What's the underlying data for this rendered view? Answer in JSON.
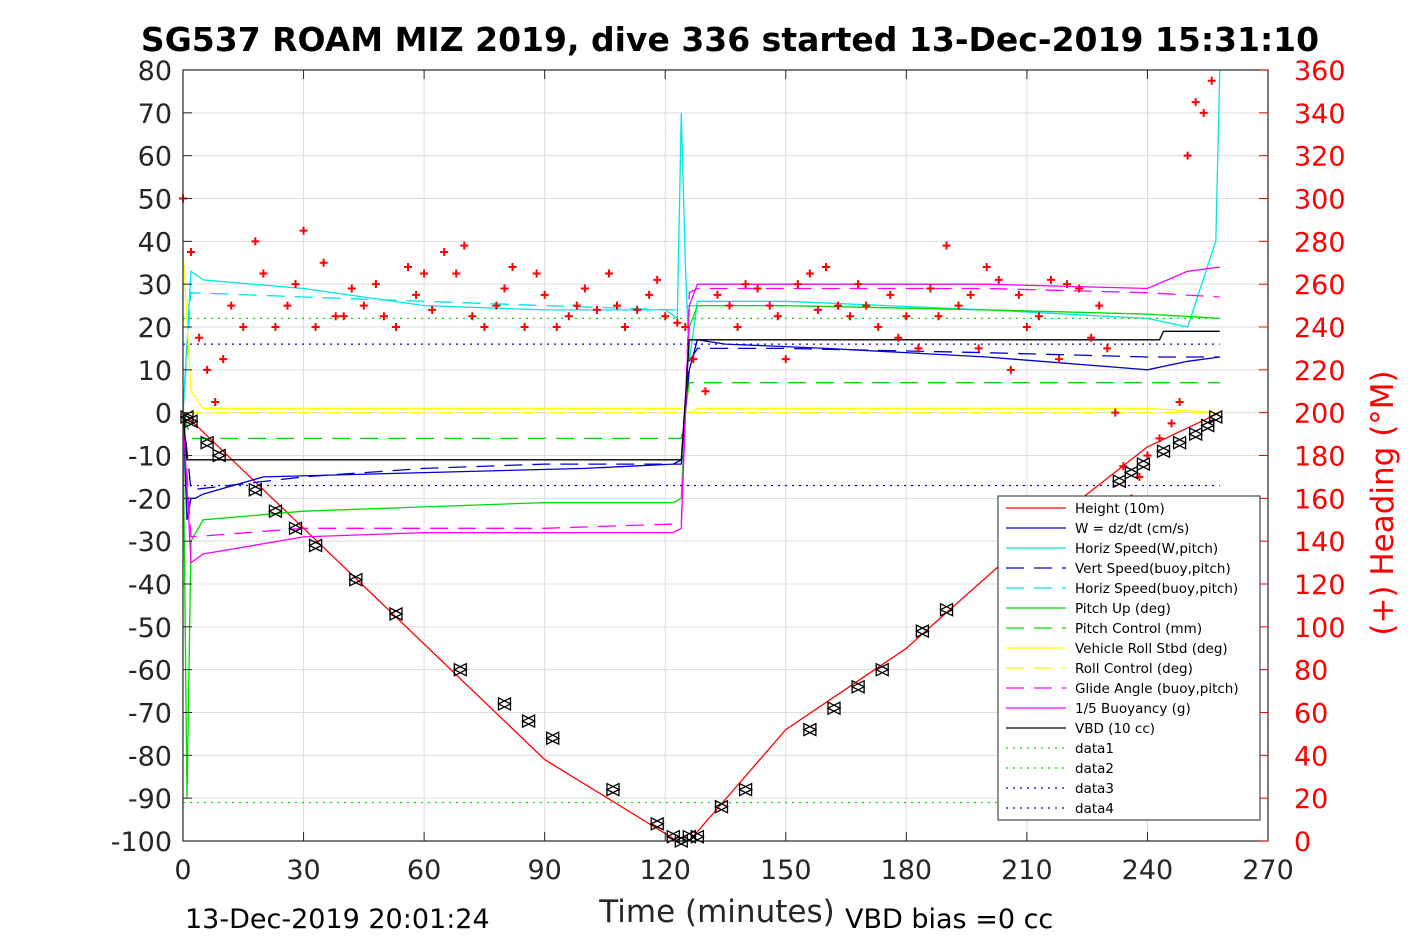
{
  "chart_data": {
    "type": "line",
    "title": "SG537 ROAM MIZ 2019, dive 336 started 13-Dec-2019 15:31:10",
    "xlabel": "Time (minutes)",
    "ylabel": "",
    "ylabel_right": "(+) Heading (°M)",
    "xlim": [
      0,
      270
    ],
    "ylim": [
      -100,
      80
    ],
    "ylim_right": [
      0,
      360
    ],
    "xticks": [
      "0",
      "30",
      "60",
      "90",
      "120",
      "150",
      "180",
      "210",
      "240",
      "270"
    ],
    "yticks": [
      "80",
      "70",
      "60",
      "50",
      "40",
      "30",
      "20",
      "10",
      "0",
      "-10",
      "-20",
      "-30",
      "-40",
      "-50",
      "-60",
      "-70",
      "-80",
      "-90",
      "-100"
    ],
    "yticks_right": [
      "360",
      "340",
      "320",
      "300",
      "280",
      "260",
      "240",
      "220",
      "200",
      "180",
      "160",
      "140",
      "120",
      "100",
      "80",
      "60",
      "40",
      "20",
      "0"
    ],
    "grid": true,
    "legend_position": "lower-right",
    "footer_left": "13-Dec-2019 20:01:24",
    "footer_right": "VBD bias =0 cc",
    "series": [
      {
        "name": "Height (10m)",
        "color": "#ff0000",
        "style": "solid",
        "x": [
          0,
          30,
          60,
          90,
          123,
          126,
          150,
          180,
          210,
          240,
          258
        ],
        "values": [
          0,
          -27,
          -54,
          -81,
          -100,
          -100,
          -74,
          -55,
          -30,
          -8,
          0
        ]
      },
      {
        "name": "W = dz/dt (cm/s)",
        "color": "#0000cc",
        "style": "solid",
        "x": [
          0,
          1,
          2,
          3,
          5,
          20,
          60,
          100,
          122,
          124,
          126,
          128,
          135,
          160,
          200,
          240,
          250,
          258
        ],
        "values": [
          0,
          -25,
          -20,
          -20,
          -19,
          -15,
          -14,
          -13,
          -12,
          -11,
          10,
          17,
          16,
          15,
          13,
          10,
          12,
          13
        ]
      },
      {
        "name": "Horiz Speed(W,pitch)",
        "color": "#00e5e5",
        "style": "solid",
        "x": [
          0,
          2,
          5,
          30,
          60,
          90,
          120,
          123,
          124,
          125,
          126,
          128,
          150,
          200,
          240,
          250,
          257,
          258
        ],
        "values": [
          0,
          33,
          31,
          29,
          25,
          24,
          24,
          22,
          70,
          35,
          12,
          26,
          26,
          24,
          22,
          20,
          40,
          80
        ]
      },
      {
        "name": "Vert Speed(buoy,pitch)",
        "color": "#0000cc",
        "style": "dashed",
        "x": [
          0,
          2,
          30,
          60,
          90,
          122,
          124,
          126,
          128,
          150,
          200,
          240,
          258
        ],
        "values": [
          0,
          -18,
          -15,
          -13,
          -12,
          -12,
          -12,
          12,
          15,
          15,
          14,
          13,
          13
        ]
      },
      {
        "name": "Horiz Speed(buoy,pitch)",
        "color": "#00e5e5",
        "style": "dashed",
        "x": [
          0,
          2,
          30,
          60,
          90,
          122,
          124,
          126,
          128,
          150,
          200,
          240,
          258
        ],
        "values": [
          0,
          28,
          27,
          26,
          25,
          24,
          24,
          25,
          25,
          25,
          24,
          23,
          22
        ]
      },
      {
        "name": "Pitch Up (deg)",
        "color": "#00dd00",
        "style": "solid",
        "x": [
          0,
          1,
          2,
          5,
          30,
          60,
          90,
          122,
          124,
          126,
          128,
          150,
          200,
          240,
          258
        ],
        "values": [
          0,
          -90,
          -30,
          -25,
          -23,
          -22,
          -21,
          -21,
          -20,
          20,
          25,
          25,
          24,
          23,
          22
        ]
      },
      {
        "name": "Pitch Control (mm)",
        "color": "#00dd00",
        "style": "dashed",
        "x": [
          0,
          2,
          30,
          60,
          90,
          122,
          124,
          126,
          128,
          150,
          200,
          240,
          258
        ],
        "values": [
          0,
          -6,
          -6,
          -6,
          -6,
          -6,
          -6,
          7,
          7,
          7,
          7,
          7,
          7
        ]
      },
      {
        "name": "Vehicle Roll Stbd (deg)",
        "color": "#ffff00",
        "style": "solid",
        "x": [
          0,
          2,
          5,
          30,
          60,
          90,
          122,
          124,
          126,
          128,
          150,
          200,
          240,
          258
        ],
        "values": [
          38,
          5,
          1,
          1,
          1,
          1,
          1,
          1,
          0,
          1,
          1,
          1,
          1,
          0
        ]
      },
      {
        "name": "Roll Control (deg)",
        "color": "#ffff00",
        "style": "dashed",
        "x": [
          0,
          258
        ],
        "values": [
          0,
          0
        ]
      },
      {
        "name": "Glide Angle (buoy,pitch)",
        "color": "#ff00ff",
        "style": "dashed",
        "x": [
          0,
          2,
          30,
          60,
          90,
          122,
          124,
          126,
          128,
          150,
          200,
          240,
          258
        ],
        "values": [
          0,
          -29,
          -27,
          -27,
          -27,
          -26,
          -26,
          28,
          29,
          29,
          29,
          28,
          27
        ]
      },
      {
        "name": "1/5 Buoyancy (g)",
        "color": "#ff00ff",
        "style": "solid",
        "x": [
          0,
          2,
          5,
          30,
          60,
          90,
          122,
          124,
          126,
          128,
          150,
          200,
          240,
          250,
          258
        ],
        "values": [
          0,
          -35,
          -33,
          -29,
          -28,
          -28,
          -28,
          -27,
          25,
          30,
          30,
          30,
          29,
          33,
          34
        ]
      },
      {
        "name": "VBD (10 cc)",
        "color": "#000000",
        "style": "solid",
        "x": [
          0,
          1,
          2,
          122,
          124,
          126,
          128,
          243,
          244,
          258
        ],
        "values": [
          0,
          -11,
          -11,
          -11,
          -11,
          17,
          17,
          17,
          19,
          19
        ]
      },
      {
        "name": "data1",
        "color": "#00dd00",
        "style": "dotted",
        "x": [
          0,
          258
        ],
        "values": [
          -91,
          -91
        ]
      },
      {
        "name": "data2",
        "color": "#00dd00",
        "style": "dotted",
        "x": [
          0,
          258
        ],
        "values": [
          22,
          22
        ]
      },
      {
        "name": "data3",
        "color": "#0000cc",
        "style": "dotted",
        "x": [
          0,
          258
        ],
        "values": [
          -17,
          -17
        ]
      },
      {
        "name": "data4",
        "color": "#0000cc",
        "style": "dotted",
        "x": [
          0,
          258
        ],
        "values": [
          16,
          16
        ]
      }
    ],
    "heading_markers": {
      "name": "Heading",
      "color": "#ff0000",
      "marker": "+",
      "x": [
        0,
        2,
        4,
        6,
        8,
        10,
        12,
        15,
        18,
        20,
        23,
        26,
        28,
        30,
        33,
        35,
        38,
        40,
        42,
        45,
        48,
        50,
        53,
        56,
        58,
        60,
        62,
        65,
        68,
        70,
        72,
        75,
        78,
        80,
        82,
        85,
        88,
        90,
        93,
        96,
        98,
        100,
        103,
        106,
        108,
        110,
        113,
        116,
        118,
        120,
        123,
        125,
        127,
        130,
        133,
        136,
        138,
        140,
        143,
        146,
        148,
        150,
        153,
        156,
        158,
        160,
        163,
        166,
        168,
        170,
        173,
        176,
        178,
        180,
        183,
        186,
        188,
        190,
        193,
        196,
        198,
        200,
        203,
        206,
        208,
        210,
        213,
        216,
        218,
        220,
        223,
        226,
        228,
        230,
        232,
        234,
        236,
        238,
        240,
        243,
        246,
        248,
        250,
        252,
        254,
        256
      ],
      "values": [
        300,
        275,
        235,
        220,
        205,
        225,
        250,
        240,
        280,
        265,
        240,
        250,
        260,
        285,
        240,
        270,
        245,
        245,
        258,
        250,
        260,
        245,
        240,
        268,
        255,
        265,
        248,
        275,
        265,
        278,
        245,
        240,
        250,
        258,
        268,
        240,
        265,
        255,
        240,
        245,
        250,
        258,
        248,
        265,
        250,
        240,
        248,
        255,
        262,
        245,
        242,
        240,
        225,
        210,
        255,
        250,
        240,
        260,
        258,
        250,
        245,
        225,
        260,
        265,
        248,
        268,
        250,
        245,
        260,
        250,
        240,
        255,
        235,
        245,
        230,
        258,
        245,
        278,
        250,
        255,
        230,
        268,
        262,
        220,
        255,
        240,
        245,
        262,
        225,
        260,
        258,
        235,
        250,
        230,
        200,
        175,
        160,
        170,
        180,
        188,
        195,
        205,
        320,
        345,
        340,
        355
      ]
    },
    "depth_markers": {
      "name": "Height (10m) markers",
      "color": "#000000",
      "marker": "triangle",
      "x": [
        1,
        2,
        6,
        9,
        18,
        23,
        28,
        33,
        43,
        53,
        69,
        80,
        86,
        92,
        107,
        118,
        122,
        124,
        126,
        128,
        134,
        140,
        156,
        162,
        168,
        174,
        184,
        190,
        233,
        236,
        239,
        244,
        248,
        252,
        255,
        257
      ],
      "values": [
        -1,
        -2,
        -7,
        -10,
        -18,
        -23,
        -27,
        -31,
        -39,
        -47,
        -60,
        -68,
        -72,
        -76,
        -88,
        -96,
        -99,
        -100,
        -99,
        -99,
        -92,
        -88,
        -74,
        -69,
        -64,
        -60,
        -51,
        -46,
        -16,
        -14,
        -12,
        -9,
        -7,
        -5,
        -3,
        -1
      ]
    }
  }
}
